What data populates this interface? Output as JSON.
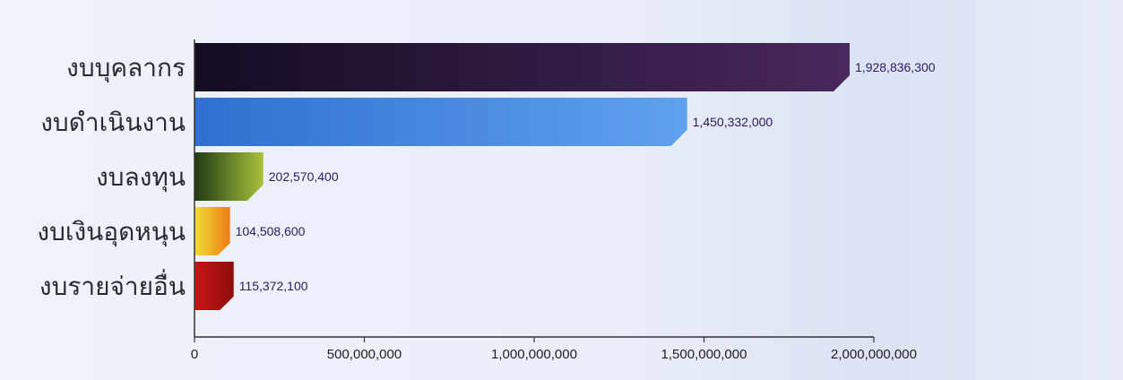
{
  "chart_data": {
    "type": "bar",
    "orientation": "horizontal",
    "categories": [
      "งบบุคลากร",
      "งบดำเนินงาน",
      "งบลงทุน",
      "งบเงินอุดหนุน",
      "งบรายจ่ายอื่น"
    ],
    "values": [
      1928836300,
      1450332000,
      202570400,
      104508600,
      115372100
    ],
    "value_labels": [
      "1,928,836,300",
      "1,450,332,000",
      "202,570,400",
      "104,508,600",
      "115,372,100"
    ],
    "bar_colors": [
      [
        "#140c22",
        "#48285e"
      ],
      [
        "#2f6fd0",
        "#5fa2ee"
      ],
      [
        "#1f3a12",
        "#a8c43c"
      ],
      [
        "#f3df34",
        "#ee7b16"
      ],
      [
        "#c81616",
        "#8e0c0c"
      ]
    ],
    "xlim": [
      0,
      2000000000
    ],
    "x_ticks": [
      0,
      500000000,
      1000000000,
      1500000000,
      2000000000
    ],
    "x_tick_labels": [
      "0",
      "500,000,000",
      "1,000,000,000",
      "1,500,000,000",
      "2,000,000,000"
    ],
    "title": "",
    "xlabel": "",
    "ylabel": "",
    "grid": false,
    "legend": "none"
  }
}
